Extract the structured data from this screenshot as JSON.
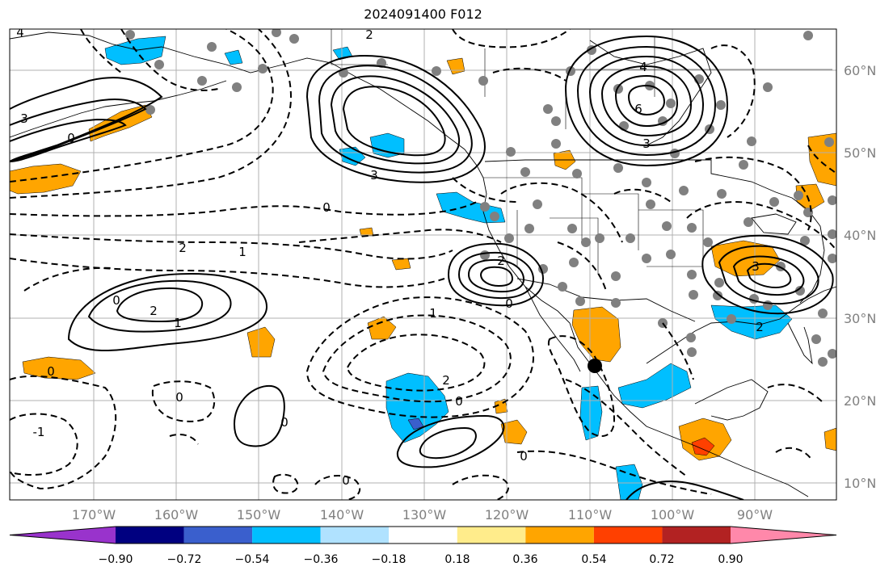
{
  "title": "2024091400 F012",
  "lon_labels": [
    "170°W",
    "160°W",
    "150°W",
    "140°W",
    "130°W",
    "120°W",
    "110°W",
    "100°W",
    "90°W"
  ],
  "lat_labels": [
    "60°N",
    "50°N",
    "40°N",
    "30°N",
    "20°N",
    "10°N"
  ],
  "colorbar": {
    "colors": [
      "#9933cc",
      "#000080",
      "#3a5fcd",
      "#00bfff",
      "#b0e2ff",
      "#ffffff",
      "#ffec8b",
      "#ffa500",
      "#ff4000",
      "#b22222",
      "#ff88aa"
    ],
    "tick_labels": [
      "−0.90",
      "−0.72",
      "−0.54",
      "−0.36",
      "−0.18",
      "0.18",
      "0.36",
      "0.54",
      "0.72",
      "0.90"
    ]
  },
  "contour_labels": {
    "nw_pos": [
      "4",
      "3",
      "0"
    ],
    "gulf_alaska": [
      "2",
      "3"
    ],
    "hudson_high": [
      "4",
      "6",
      "3"
    ],
    "central": [
      "0",
      "2",
      "1"
    ],
    "cal_low": [
      "2",
      "0"
    ],
    "hawaii_high": [
      "0",
      "2",
      "1"
    ],
    "south": [
      "0",
      "1",
      "2",
      "0",
      "0",
      "0",
      "-1",
      "0"
    ],
    "eastern": [
      "3",
      "2",
      "0"
    ]
  },
  "colors": {
    "land_outline": "#000000",
    "grid": "#b0b0b0",
    "contour": "#000000",
    "dots": "#808080"
  }
}
